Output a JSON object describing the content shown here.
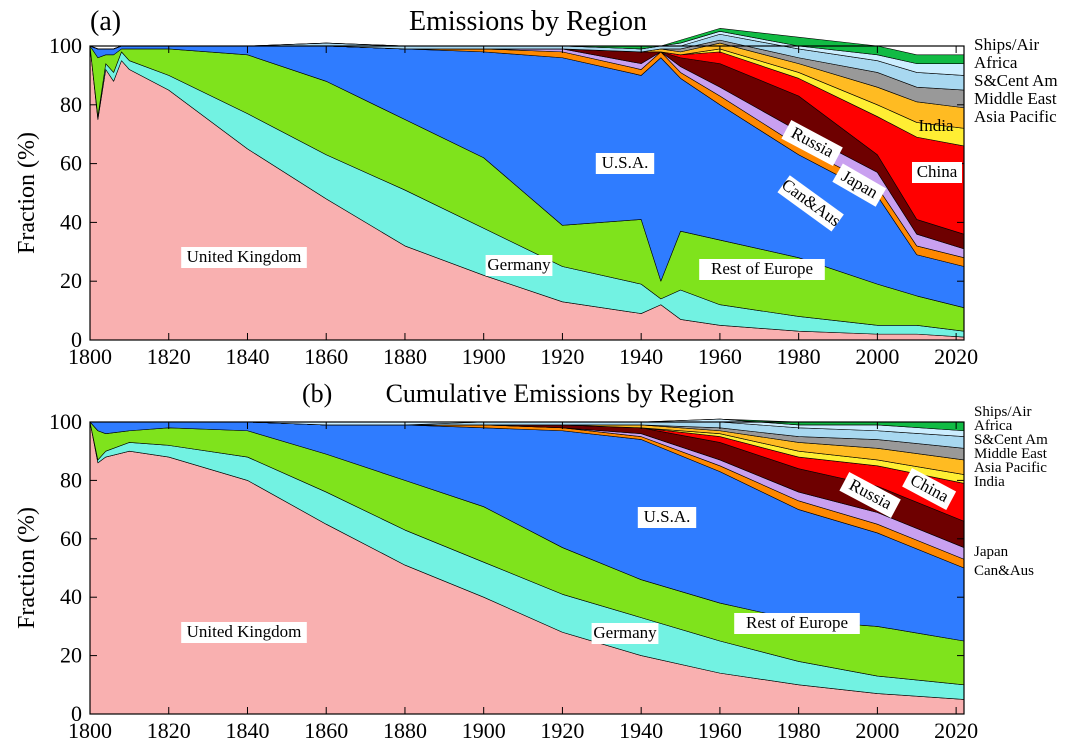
{
  "chart_data": [
    {
      "type": "area",
      "panel_label": "(a)",
      "title": "Emissions by Region",
      "xlabel": "",
      "ylabel": "Fraction (%)",
      "xlim": [
        1800,
        2022
      ],
      "ylim": [
        0,
        100
      ],
      "x_ticks": [
        "1800",
        "1820",
        "1840",
        "1860",
        "1880",
        "1900",
        "1920",
        "1940",
        "1960",
        "1980",
        "2000",
        "2020"
      ],
      "y_ticks": [
        "0",
        "20",
        "40",
        "60",
        "80",
        "100"
      ],
      "stacked": true,
      "x": [
        1800,
        1802,
        1804,
        1806,
        1808,
        1810,
        1820,
        1840,
        1860,
        1880,
        1900,
        1920,
        1940,
        1945,
        1950,
        1960,
        1980,
        2000,
        2010,
        2022
      ],
      "series": [
        {
          "name": "United Kingdom",
          "color": "#f9b0b0",
          "values": [
            100,
            75,
            92,
            88,
            95,
            92,
            85,
            65,
            48,
            32,
            22,
            13,
            9,
            12,
            7,
            5,
            3,
            2,
            2,
            1
          ]
        },
        {
          "name": "Germany",
          "color": "#72f2e2",
          "values": [
            0,
            1,
            2,
            3,
            3,
            3,
            5,
            12,
            15,
            19,
            16,
            12,
            10,
            2,
            10,
            7,
            5,
            3,
            3,
            2
          ]
        },
        {
          "name": "Rest of Europe",
          "color": "#7fe31c",
          "values": [
            0,
            20,
            3,
            6,
            1,
            4,
            9,
            20,
            25,
            24,
            24,
            14,
            22,
            6,
            20,
            22,
            20,
            14,
            10,
            8
          ]
        },
        {
          "name": "U.S.A.",
          "color": "#2f7cff",
          "values": [
            0,
            3,
            2,
            2,
            1,
            1,
            1,
            3,
            12,
            24,
            36,
            57,
            49,
            76,
            52,
            46,
            35,
            30,
            14,
            14
          ]
        },
        {
          "name": "Can&Aus",
          "color": "#ff8800",
          "values": [
            0,
            0,
            0,
            0,
            0,
            0,
            0,
            0,
            0,
            0,
            1,
            2,
            2,
            2,
            2,
            3,
            3,
            3,
            3,
            3
          ]
        },
        {
          "name": "Japan",
          "color": "#c9a0f0",
          "values": [
            0,
            0,
            0,
            0,
            0,
            0,
            0,
            0,
            0,
            0,
            0,
            1,
            2,
            0,
            2,
            3,
            5,
            5,
            4,
            3
          ]
        },
        {
          "name": "Russia",
          "color": "#6e0000",
          "values": [
            0,
            0,
            0,
            0,
            0,
            0,
            0,
            0,
            0,
            0,
            0,
            0,
            4,
            0,
            3,
            8,
            12,
            6,
            5,
            5
          ]
        },
        {
          "name": "China",
          "color": "#ff0000",
          "values": [
            0,
            0,
            0,
            0,
            0,
            0,
            0,
            0,
            0,
            0,
            0,
            0,
            0,
            0,
            1,
            4,
            6,
            13,
            28,
            30
          ]
        },
        {
          "name": "India",
          "color": "#ffee33",
          "values": [
            0,
            0,
            0,
            0,
            0,
            0,
            0,
            0,
            0,
            0,
            0,
            0,
            0,
            0,
            0,
            1,
            2,
            4,
            5,
            6
          ]
        },
        {
          "name": "Asia Pacific",
          "color": "#ffbb22",
          "values": [
            0,
            0,
            0,
            0,
            0,
            0,
            0,
            0,
            0,
            0,
            0,
            0,
            0,
            1,
            1,
            2,
            3,
            6,
            7,
            7
          ]
        },
        {
          "name": "Middle East",
          "color": "#999999",
          "values": [
            0,
            0,
            0,
            0,
            0,
            0,
            0,
            0,
            0,
            0,
            0,
            0,
            0,
            0,
            1,
            1,
            2,
            5,
            5,
            6
          ]
        },
        {
          "name": "S&Cent Am",
          "color": "#a8d8f0",
          "values": [
            0,
            0,
            0,
            0,
            0,
            0,
            0,
            0,
            1,
            1,
            1,
            1,
            1,
            1,
            1,
            2,
            3,
            4,
            5,
            5
          ]
        },
        {
          "name": "Africa",
          "color": "#cceeff",
          "values": [
            0,
            0,
            0,
            0,
            0,
            0,
            0,
            0,
            0,
            0,
            0,
            0,
            0,
            0,
            1,
            1,
            1,
            2,
            3,
            4
          ]
        },
        {
          "name": "Ships/Air",
          "color": "#11bb44",
          "values": [
            0,
            0,
            0,
            0,
            0,
            0,
            0,
            0,
            0,
            0,
            0,
            0,
            1,
            0,
            1,
            1,
            3,
            3,
            3,
            3
          ]
        }
      ],
      "region_labels": [
        "United Kingdom",
        "Germany",
        "Rest of Europe",
        "U.S.A.",
        "Russia",
        "Japan",
        "Can&Aus",
        "China",
        "India"
      ],
      "legend": [
        "Ships/Air",
        "Africa",
        "S&Cent Am",
        "Middle East",
        "Asia Pacific"
      ]
    },
    {
      "type": "area",
      "panel_label": "(b)",
      "title": "Cumulative Emissions by Region",
      "xlabel": "",
      "ylabel": "Fraction (%)",
      "xlim": [
        1800,
        2022
      ],
      "ylim": [
        0,
        100
      ],
      "x_ticks": [
        "1800",
        "1820",
        "1840",
        "1860",
        "1880",
        "1900",
        "1920",
        "1940",
        "1960",
        "1980",
        "2000",
        "2020"
      ],
      "y_ticks": [
        "0",
        "20",
        "40",
        "60",
        "80",
        "100"
      ],
      "stacked": true,
      "x": [
        1800,
        1802,
        1804,
        1810,
        1820,
        1840,
        1860,
        1880,
        1900,
        1920,
        1940,
        1960,
        1980,
        2000,
        2022
      ],
      "series": [
        {
          "name": "United Kingdom",
          "color": "#f9b0b0",
          "values": [
            100,
            86,
            88,
            90,
            88,
            80,
            65,
            51,
            40,
            28,
            20,
            14,
            10,
            7,
            5
          ]
        },
        {
          "name": "Germany",
          "color": "#72f2e2",
          "values": [
            0,
            1,
            2,
            3,
            4,
            8,
            11,
            12,
            12,
            13,
            13,
            11,
            8,
            6,
            5
          ]
        },
        {
          "name": "Rest of Europe",
          "color": "#7fe31c",
          "values": [
            0,
            10,
            6,
            4,
            6,
            9,
            13,
            17,
            19,
            16,
            13,
            13,
            14,
            17,
            15
          ]
        },
        {
          "name": "U.S.A.",
          "color": "#2f7cff",
          "values": [
            0,
            3,
            4,
            3,
            2,
            3,
            10,
            19,
            27,
            40,
            48,
            45,
            38,
            32,
            25
          ]
        },
        {
          "name": "Can&Aus",
          "color": "#ff8800",
          "values": [
            0,
            0,
            0,
            0,
            0,
            0,
            0,
            0,
            1,
            1,
            1,
            2,
            3,
            3,
            3
          ]
        },
        {
          "name": "Japan",
          "color": "#c9a0f0",
          "values": [
            0,
            0,
            0,
            0,
            0,
            0,
            0,
            0,
            0,
            0,
            1,
            2,
            3,
            4,
            4
          ]
        },
        {
          "name": "Russia",
          "color": "#6e0000",
          "values": [
            0,
            0,
            0,
            0,
            0,
            0,
            0,
            0,
            0,
            1,
            2,
            6,
            8,
            9,
            9
          ]
        },
        {
          "name": "China",
          "color": "#ff0000",
          "values": [
            0,
            0,
            0,
            0,
            0,
            0,
            0,
            0,
            0,
            0,
            0,
            2,
            4,
            7,
            13
          ]
        },
        {
          "name": "India",
          "color": "#ffee33",
          "values": [
            0,
            0,
            0,
            0,
            0,
            0,
            0,
            0,
            0,
            0,
            0,
            1,
            2,
            2,
            3
          ]
        },
        {
          "name": "Asia Pacific",
          "color": "#ffbb22",
          "values": [
            0,
            0,
            0,
            0,
            0,
            0,
            0,
            0,
            0,
            0,
            1,
            1,
            3,
            4,
            5
          ]
        },
        {
          "name": "Middle East",
          "color": "#999999",
          "values": [
            0,
            0,
            0,
            0,
            0,
            0,
            0,
            0,
            0,
            0,
            0,
            1,
            2,
            3,
            4
          ]
        },
        {
          "name": "S&Cent Am",
          "color": "#a8d8f0",
          "values": [
            0,
            0,
            0,
            0,
            0,
            0,
            0,
            0,
            1,
            1,
            1,
            2,
            3,
            3,
            4
          ]
        },
        {
          "name": "Africa",
          "color": "#cceeff",
          "values": [
            0,
            0,
            0,
            0,
            0,
            0,
            1,
            1,
            0,
            0,
            0,
            1,
            1,
            2,
            2
          ]
        },
        {
          "name": "Ships/Air",
          "color": "#11bb44",
          "values": [
            0,
            0,
            0,
            0,
            0,
            0,
            0,
            0,
            0,
            0,
            0,
            0,
            1,
            1,
            3
          ]
        }
      ],
      "region_labels": [
        "United Kingdom",
        "Germany",
        "Rest of Europe",
        "U.S.A.",
        "Russia",
        "China"
      ],
      "legend": [
        "Ships/Air",
        "Africa",
        "S&Cent Am",
        "Middle East",
        "Asia Pacific",
        "India",
        "Japan",
        "Can&Aus"
      ]
    }
  ]
}
